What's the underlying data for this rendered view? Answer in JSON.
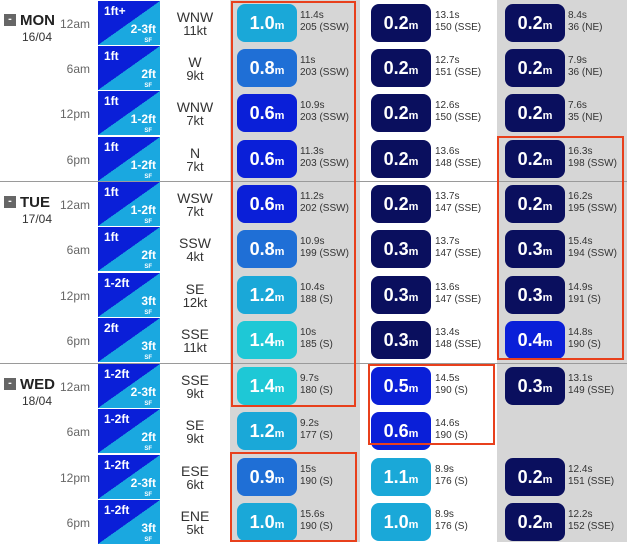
{
  "colors": {
    "highlight": "#e8401c",
    "grey_column": "#d6d6d6",
    "pill_cyan": "#1ec8d6",
    "pill_sky": "#1aa8d8",
    "pill_blue": "#1f6fd6",
    "pill_darkblue": "#0a1fd8",
    "pill_navy": "#0a0f5e",
    "surf_dark": "#0a1fd8",
    "surf_light": "#1aa8e0"
  },
  "days": [
    {
      "name": "MON",
      "date": "16/04",
      "collapse_icon": "minus-icon",
      "collapse_label": "-"
    },
    {
      "name": "TUE",
      "date": "17/04",
      "collapse_icon": "minus-icon",
      "collapse_label": "-"
    },
    {
      "name": "WED",
      "date": "18/04",
      "collapse_icon": "minus-icon",
      "collapse_label": "-"
    }
  ],
  "rows": [
    {
      "time": "12am",
      "surf_top": "1ft+",
      "surf_bottom": "2-3ft",
      "surf_sf": "SF",
      "wind_dir": "WNW",
      "wind_speed": "11kt",
      "s1": {
        "h": "1.0",
        "u": "m",
        "p": "11.4s",
        "dir": "205 (SSW)"
      },
      "s2": {
        "h": "0.2",
        "u": "m",
        "p": "13.1s",
        "dir": "150 (SSE)"
      },
      "s3": {
        "h": "0.2",
        "u": "m",
        "p": "8.4s",
        "dir": "36 (NE)"
      }
    },
    {
      "time": "6am",
      "surf_top": "1ft",
      "surf_bottom": "2ft",
      "surf_sf": "SF",
      "wind_dir": "W",
      "wind_speed": "9kt",
      "s1": {
        "h": "0.8",
        "u": "m",
        "p": "11s",
        "dir": "203 (SSW)"
      },
      "s2": {
        "h": "0.2",
        "u": "m",
        "p": "12.7s",
        "dir": "151 (SSE)"
      },
      "s3": {
        "h": "0.2",
        "u": "m",
        "p": "7.9s",
        "dir": "36 (NE)"
      }
    },
    {
      "time": "12pm",
      "surf_top": "1ft",
      "surf_bottom": "1-2ft",
      "surf_sf": "SF",
      "wind_dir": "WNW",
      "wind_speed": "7kt",
      "s1": {
        "h": "0.6",
        "u": "m",
        "p": "10.9s",
        "dir": "203 (SSW)"
      },
      "s2": {
        "h": "0.2",
        "u": "m",
        "p": "12.6s",
        "dir": "150 (SSE)"
      },
      "s3": {
        "h": "0.2",
        "u": "m",
        "p": "7.6s",
        "dir": "35 (NE)"
      }
    },
    {
      "time": "6pm",
      "surf_top": "1ft",
      "surf_bottom": "1-2ft",
      "surf_sf": "SF",
      "wind_dir": "N",
      "wind_speed": "7kt",
      "s1": {
        "h": "0.6",
        "u": "m",
        "p": "11.3s",
        "dir": "203 (SSW)"
      },
      "s2": {
        "h": "0.2",
        "u": "m",
        "p": "13.6s",
        "dir": "148 (SSE)"
      },
      "s3": {
        "h": "0.2",
        "u": "m",
        "p": "16.3s",
        "dir": "198 (SSW)"
      }
    },
    {
      "time": "12am",
      "surf_top": "1ft",
      "surf_bottom": "1-2ft",
      "surf_sf": "SF",
      "wind_dir": "WSW",
      "wind_speed": "7kt",
      "s1": {
        "h": "0.6",
        "u": "m",
        "p": "11.2s",
        "dir": "202 (SSW)"
      },
      "s2": {
        "h": "0.2",
        "u": "m",
        "p": "13.7s",
        "dir": "147 (SSE)"
      },
      "s3": {
        "h": "0.2",
        "u": "m",
        "p": "16.2s",
        "dir": "195 (SSW)"
      }
    },
    {
      "time": "6am",
      "surf_top": "1ft",
      "surf_bottom": "2ft",
      "surf_sf": "SF",
      "wind_dir": "SSW",
      "wind_speed": "4kt",
      "s1": {
        "h": "0.8",
        "u": "m",
        "p": "10.9s",
        "dir": "199 (SSW)"
      },
      "s2": {
        "h": "0.3",
        "u": "m",
        "p": "13.7s",
        "dir": "147 (SSE)"
      },
      "s3": {
        "h": "0.3",
        "u": "m",
        "p": "15.4s",
        "dir": "194 (SSW)"
      }
    },
    {
      "time": "12pm",
      "surf_top": "1-2ft",
      "surf_bottom": "3ft",
      "surf_sf": "SF",
      "wind_dir": "SE",
      "wind_speed": "12kt",
      "s1": {
        "h": "1.2",
        "u": "m",
        "p": "10.4s",
        "dir": "188 (S)"
      },
      "s2": {
        "h": "0.3",
        "u": "m",
        "p": "13.6s",
        "dir": "147 (SSE)"
      },
      "s3": {
        "h": "0.3",
        "u": "m",
        "p": "14.9s",
        "dir": "191 (S)"
      }
    },
    {
      "time": "6pm",
      "surf_top": "2ft",
      "surf_bottom": "3ft",
      "surf_sf": "SF",
      "wind_dir": "SSE",
      "wind_speed": "11kt",
      "s1": {
        "h": "1.4",
        "u": "m",
        "p": "10s",
        "dir": "185 (S)"
      },
      "s2": {
        "h": "0.3",
        "u": "m",
        "p": "13.4s",
        "dir": "148 (SSE)"
      },
      "s3": {
        "h": "0.4",
        "u": "m",
        "p": "14.8s",
        "dir": "190 (S)"
      }
    },
    {
      "time": "12am",
      "surf_top": "1-2ft",
      "surf_bottom": "2-3ft",
      "surf_sf": "SF",
      "wind_dir": "SSE",
      "wind_speed": "9kt",
      "s1": {
        "h": "1.4",
        "u": "m",
        "p": "9.7s",
        "dir": "180 (S)"
      },
      "s2": {
        "h": "0.5",
        "u": "m",
        "p": "14.5s",
        "dir": "190 (S)"
      },
      "s3": {
        "h": "0.3",
        "u": "m",
        "p": "13.1s",
        "dir": "149 (SSE)"
      }
    },
    {
      "time": "6am",
      "surf_top": "1-2ft",
      "surf_bottom": "2ft",
      "surf_sf": "SF",
      "wind_dir": "SE",
      "wind_speed": "9kt",
      "s1": {
        "h": "1.2",
        "u": "m",
        "p": "9.2s",
        "dir": "177 (S)"
      },
      "s2": {
        "h": "0.6",
        "u": "m",
        "p": "14.6s",
        "dir": "190 (S)"
      },
      "s3": null
    },
    {
      "time": "12pm",
      "surf_top": "1-2ft",
      "surf_bottom": "2-3ft",
      "surf_sf": "SF",
      "wind_dir": "ESE",
      "wind_speed": "6kt",
      "s1": {
        "h": "0.9",
        "u": "m",
        "p": "15s",
        "dir": "190 (S)"
      },
      "s2": {
        "h": "1.1",
        "u": "m",
        "p": "8.9s",
        "dir": "176 (S)"
      },
      "s3": {
        "h": "0.2",
        "u": "m",
        "p": "12.4s",
        "dir": "151 (SSE)"
      }
    },
    {
      "time": "6pm",
      "surf_top": "1-2ft",
      "surf_bottom": "3ft",
      "surf_sf": "SF",
      "wind_dir": "ENE",
      "wind_speed": "5kt",
      "s1": {
        "h": "1.0",
        "u": "m",
        "p": "15.6s",
        "dir": "190 (S)"
      },
      "s2": {
        "h": "1.0",
        "u": "m",
        "p": "8.9s",
        "dir": "176 (S)"
      },
      "s3": {
        "h": "0.2",
        "u": "m",
        "p": "12.2s",
        "dir": "152 (SSE)"
      }
    }
  ]
}
